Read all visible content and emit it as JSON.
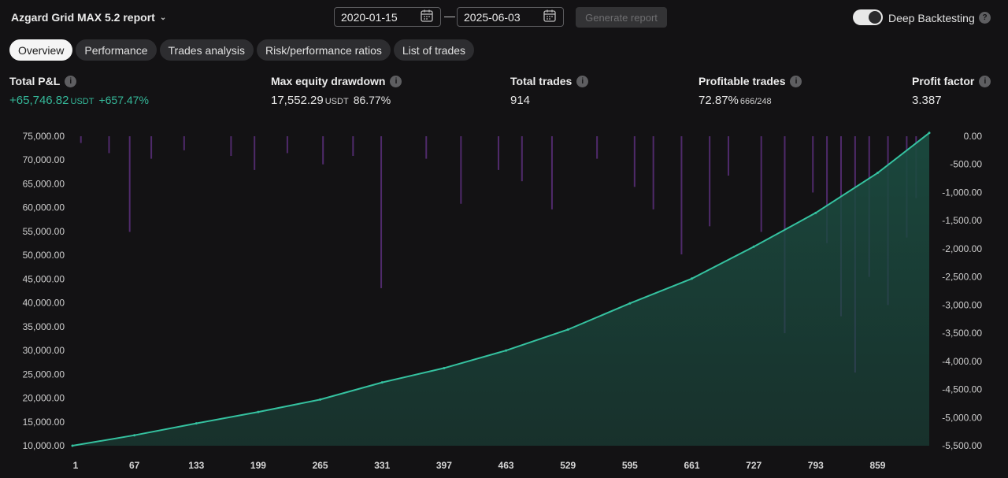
{
  "header": {
    "report_title": "Azgard Grid MAX 5.2 report",
    "date_from": "2020-01-15",
    "date_to": "2025-06-03",
    "date_separator": "—",
    "generate_label": "Generate report",
    "deep_backtesting_label": "Deep Backtesting",
    "deep_backtesting_on": true
  },
  "tabs": [
    {
      "label": "Overview",
      "active": true
    },
    {
      "label": "Performance",
      "active": false
    },
    {
      "label": "Trades analysis",
      "active": false
    },
    {
      "label": "Risk/performance ratios",
      "active": false
    },
    {
      "label": "List of trades",
      "active": false
    }
  ],
  "stats": {
    "total_pnl": {
      "label": "Total P&L",
      "value": "+65,746.82",
      "unit": "USDT",
      "pct": "+657.47%"
    },
    "max_drawdown": {
      "label": "Max equity drawdown",
      "value": "17,552.29",
      "unit": "USDT",
      "pct": "86.77%"
    },
    "total_trades": {
      "label": "Total trades",
      "value": "914"
    },
    "profitable_trades": {
      "label": "Profitable trades",
      "value": "72.87%",
      "sub": "666/248"
    },
    "profit_factor": {
      "label": "Profit factor",
      "value": "3.387"
    }
  },
  "colors": {
    "background": "#131214",
    "equity_line": "#35c2a0",
    "equity_fill": "#1b4a3f",
    "drawdown_bars": "#5a2f7a",
    "positive": "#35b99a"
  },
  "chart_data": {
    "type": "area",
    "x_ticks": [
      "1",
      "67",
      "133",
      "199",
      "265",
      "331",
      "397",
      "463",
      "529",
      "595",
      "661",
      "727",
      "793",
      "859"
    ],
    "xlim": [
      1,
      914
    ],
    "left_ticks": [
      "75,000.00",
      "70,000.00",
      "65,000.00",
      "60,000.00",
      "55,000.00",
      "50,000.00",
      "45,000.00",
      "40,000.00",
      "35,000.00",
      "30,000.00",
      "25,000.00",
      "20,000.00",
      "15,000.00",
      "10,000.00"
    ],
    "ylim_left": [
      10000,
      75000
    ],
    "right_ticks": [
      "0.00",
      "-500.00",
      "-1,000.00",
      "-1,500.00",
      "-2,000.00",
      "-2,500.00",
      "-3,000.00",
      "-3,500.00",
      "-4,000.00",
      "-4,500.00",
      "-5,000.00",
      "-5,500.00"
    ],
    "ylim_right": [
      -5500,
      0
    ],
    "series": [
      {
        "kind": "equity",
        "x": [
          1,
          67,
          133,
          199,
          265,
          331,
          397,
          463,
          529,
          595,
          661,
          727,
          793,
          859,
          914
        ],
        "values": [
          10000,
          12200,
          14700,
          17100,
          19700,
          23300,
          26300,
          30000,
          34400,
          39900,
          45100,
          51800,
          58900,
          67300,
          75700
        ]
      },
      {
        "kind": "drawdown",
        "x": [
          10,
          40,
          62,
          85,
          120,
          170,
          195,
          230,
          268,
          300,
          330,
          378,
          415,
          455,
          480,
          512,
          560,
          600,
          620,
          650,
          680,
          700,
          735,
          760,
          790,
          805,
          820,
          835,
          850,
          870,
          890,
          900
        ],
        "values": [
          -120,
          -300,
          -1700,
          -400,
          -250,
          -350,
          -600,
          -300,
          -500,
          -350,
          -2700,
          -400,
          -1200,
          -600,
          -800,
          -1300,
          -400,
          -900,
          -1300,
          -2100,
          -1600,
          -700,
          -1700,
          -3500,
          -1000,
          -1900,
          -3200,
          -4200,
          -2500,
          -3000,
          -1800,
          -1100
        ]
      }
    ]
  }
}
